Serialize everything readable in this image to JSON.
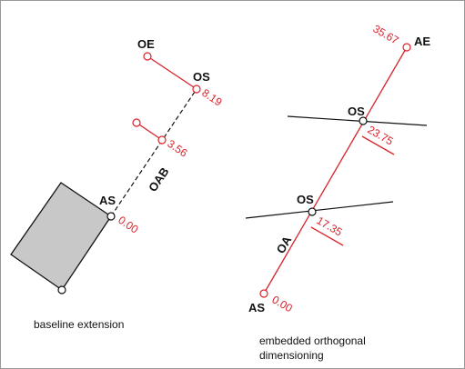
{
  "baseline_extension": {
    "caption": "baseline extension",
    "labels": [
      "OE",
      "OS",
      "AS",
      "OAB"
    ],
    "dimensions": [
      "8.19",
      "3.56",
      "0.00"
    ]
  },
  "embedded_orthogonal_dimensioning": {
    "caption_lines": [
      "embedded orthogonal",
      "dimensioning"
    ],
    "labels": [
      "AE",
      "OS",
      "OS",
      "OA",
      "AS"
    ],
    "dimensions": [
      "35.67",
      "23.75",
      "17.35",
      "0.00"
    ]
  }
}
